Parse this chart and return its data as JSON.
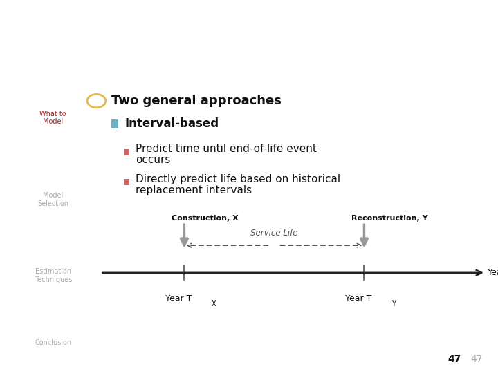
{
  "title": "Interval-based",
  "title_bg": "#111111",
  "title_color": "#ffffff",
  "title_fontsize": 22,
  "sidebar_bg": "#ffffff",
  "sidebar_line_color": "#F0C84A",
  "nav_items": [
    "What to\nModel",
    "Model\nSelection",
    "Estimation\nTechniques",
    "Conclusion"
  ],
  "nav_active": "What to\nModel",
  "nav_active_color": "#aa2222",
  "nav_inactive_color": "#aaaaaa",
  "bullet1_circle_color": "#E8B84B",
  "bullet1_text": "Two general approaches",
  "bullet1_fontsize": 13,
  "bullet2_square_color": "#6ab0c8",
  "bullet2_text": "Interval-based",
  "bullet2_fontsize": 12,
  "sub_bullet_color": "#cc6666",
  "sub_bullet1_line1": "Predict time until end-of-life event",
  "sub_bullet1_line2": "occurs",
  "sub_bullet2_line1": "Directly predict life based on historical",
  "sub_bullet2_line2": "replacement intervals",
  "sub_fontsize": 11,
  "diagram_label_x": "Construction, X",
  "diagram_label_y": "Reconstruction, Y",
  "diagram_service_life": "Service Life",
  "diagram_year_label": "Year",
  "diagram_tx": "Year T",
  "diagram_tx_sub": "X",
  "diagram_ty": "Year T",
  "diagram_ty_sub": "Y",
  "page_number": "47",
  "bg_color": "#ffffff"
}
